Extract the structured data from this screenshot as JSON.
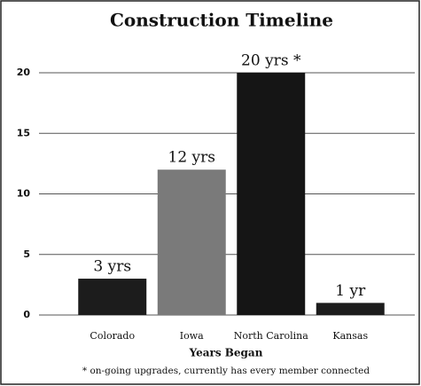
{
  "chart_data": {
    "type": "bar",
    "title": "Construction Timeline",
    "categories": [
      "Colorado",
      "Iowa",
      "North Carolina",
      "Kansas"
    ],
    "values": [
      3,
      12,
      20,
      1
    ],
    "value_labels": [
      "3 yrs",
      "12 yrs",
      "20 yrs *",
      "1 yr"
    ],
    "colors": [
      "#1c1c1c",
      "#7a7a7a",
      "#151515",
      "#1c1c1c"
    ],
    "xlabel": "Years Began",
    "annotation": "* on-going upgrades, currently has every member connected",
    "ylim": [
      0,
      20
    ],
    "yticks": [
      0,
      5,
      10,
      15,
      20
    ],
    "grid": true
  }
}
